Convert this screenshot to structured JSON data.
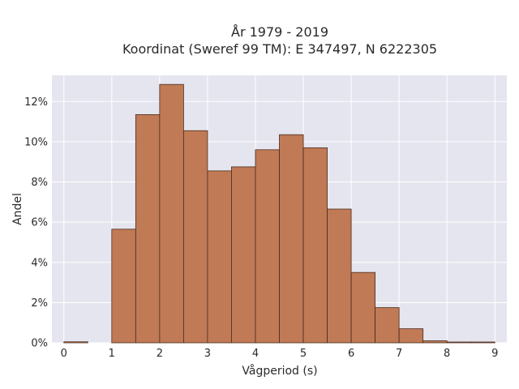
{
  "chart_data": {
    "type": "bar",
    "title_lines": [
      "År 1979 - 2019",
      "Koordinat (Sweref 99 TM): E 347497, N 6222305"
    ],
    "xlabel": "Vågperiod (s)",
    "ylabel": "Andel",
    "xlim": [
      -0.25,
      9.25
    ],
    "ylim": [
      0,
      13.3
    ],
    "x_ticks": [
      0,
      1,
      2,
      3,
      4,
      5,
      6,
      7,
      8,
      9
    ],
    "x_tick_labels": [
      "0",
      "1",
      "2",
      "3",
      "4",
      "5",
      "6",
      "7",
      "8",
      "9"
    ],
    "y_ticks": [
      0,
      2,
      4,
      6,
      8,
      10,
      12
    ],
    "y_tick_labels": [
      "0%",
      "2%",
      "4%",
      "6%",
      "8%",
      "10%",
      "12%"
    ],
    "grid": true,
    "bin_width": 0.5,
    "bins": [
      {
        "x0": 0.0,
        "x1": 0.5,
        "value": 0.05
      },
      {
        "x0": 0.5,
        "x1": 1.0,
        "value": 0.0
      },
      {
        "x0": 1.0,
        "x1": 1.5,
        "value": 5.65
      },
      {
        "x0": 1.5,
        "x1": 2.0,
        "value": 11.35
      },
      {
        "x0": 2.0,
        "x1": 2.5,
        "value": 12.85
      },
      {
        "x0": 2.5,
        "x1": 3.0,
        "value": 10.55
      },
      {
        "x0": 3.0,
        "x1": 3.5,
        "value": 8.55
      },
      {
        "x0": 3.5,
        "x1": 4.0,
        "value": 8.75
      },
      {
        "x0": 4.0,
        "x1": 4.5,
        "value": 9.6
      },
      {
        "x0": 4.5,
        "x1": 5.0,
        "value": 10.35
      },
      {
        "x0": 5.0,
        "x1": 5.5,
        "value": 9.7
      },
      {
        "x0": 5.5,
        "x1": 6.0,
        "value": 6.65
      },
      {
        "x0": 6.0,
        "x1": 6.5,
        "value": 3.5
      },
      {
        "x0": 6.5,
        "x1": 7.0,
        "value": 1.75
      },
      {
        "x0": 7.0,
        "x1": 7.5,
        "value": 0.7
      },
      {
        "x0": 7.5,
        "x1": 8.0,
        "value": 0.1
      },
      {
        "x0": 8.0,
        "x1": 8.5,
        "value": 0.02
      },
      {
        "x0": 8.5,
        "x1": 9.0,
        "value": 0.02
      }
    ]
  },
  "colors": {
    "bar_fill": "#c07a55",
    "bar_stroke": "#4a2c1c",
    "plot_background": "#e5e5ef",
    "grid": "#ffffff"
  }
}
